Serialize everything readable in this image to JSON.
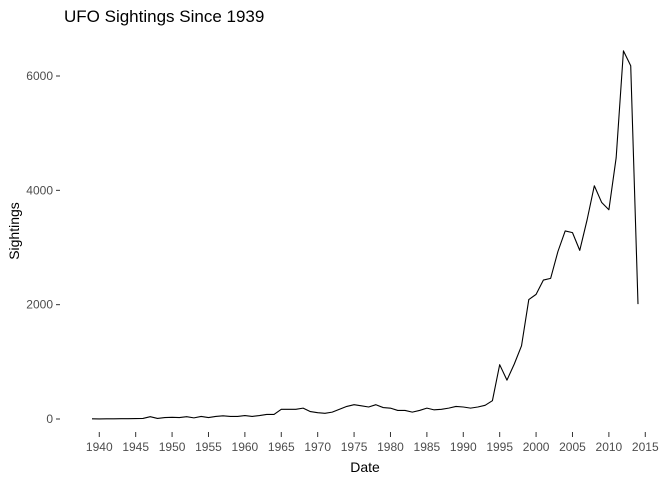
{
  "chart_data": {
    "type": "line",
    "title": "UFO Sightings Since 1939",
    "xlabel": "Date",
    "ylabel": "Sightings",
    "xlim": [
      1939,
      2014
    ],
    "ylim": [
      0,
      6450
    ],
    "x_ticks": [
      1940,
      1945,
      1950,
      1955,
      1960,
      1965,
      1970,
      1975,
      1980,
      1985,
      1990,
      1995,
      2000,
      2005,
      2010,
      2015
    ],
    "y_ticks": [
      0,
      2000,
      4000,
      6000
    ],
    "grid": false,
    "line_color": "#000000",
    "series": [
      {
        "x": [
          1939,
          1940,
          1941,
          1942,
          1943,
          1944,
          1945,
          1946,
          1947,
          1948,
          1949,
          1950,
          1951,
          1952,
          1953,
          1954,
          1955,
          1956,
          1957,
          1958,
          1959,
          1960,
          1961,
          1962,
          1963,
          1964,
          1965,
          1966,
          1967,
          1968,
          1969,
          1970,
          1971,
          1972,
          1973,
          1974,
          1975,
          1976,
          1977,
          1978,
          1979,
          1980,
          1981,
          1982,
          1983,
          1984,
          1985,
          1986,
          1987,
          1988,
          1989,
          1990,
          1991,
          1992,
          1993,
          1994,
          1995,
          1996,
          1997,
          1998,
          1999,
          2000,
          2001,
          2002,
          2003,
          2004,
          2005,
          2006,
          2007,
          2008,
          2009,
          2010,
          2011,
          2012,
          2013,
          2014
        ],
        "values": [
          3,
          2,
          3,
          4,
          6,
          5,
          8,
          10,
          40,
          10,
          25,
          30,
          25,
          40,
          20,
          45,
          25,
          45,
          55,
          45,
          45,
          60,
          45,
          60,
          80,
          80,
          170,
          170,
          170,
          190,
          130,
          110,
          100,
          120,
          170,
          220,
          250,
          230,
          210,
          250,
          200,
          190,
          150,
          150,
          120,
          150,
          190,
          160,
          170,
          190,
          220,
          210,
          190,
          210,
          240,
          320,
          950,
          680,
          960,
          1280,
          2090,
          2180,
          2430,
          2460,
          2930,
          3290,
          3260,
          2950,
          3480,
          4080,
          3790,
          3660,
          4570,
          6440,
          6180,
          2010
        ]
      }
    ]
  }
}
